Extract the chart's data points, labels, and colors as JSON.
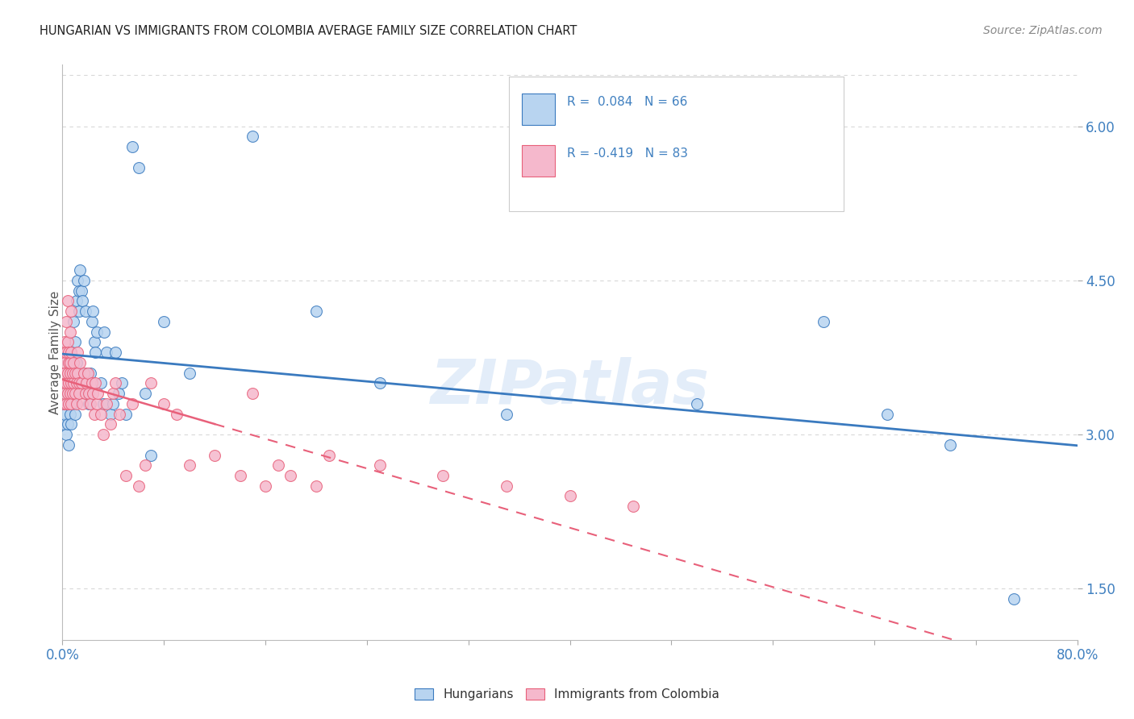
{
  "title": "HUNGARIAN VS IMMIGRANTS FROM COLOMBIA AVERAGE FAMILY SIZE CORRELATION CHART",
  "source_text": "Source: ZipAtlas.com",
  "ylabel": "Average Family Size",
  "right_yticks": [
    1.5,
    3.0,
    4.5,
    6.0
  ],
  "background_color": "#ffffff",
  "grid_color": "#d8d8d8",
  "hungarian_color": "#b8d4f0",
  "colombia_color": "#f5b8cc",
  "hungarian_line_color": "#3a7abf",
  "colombia_line_color": "#e8607a",
  "title_color": "#222222",
  "axis_label_color": "#4080c0",
  "watermark": "ZIPatlas",
  "xlim": [
    0.0,
    0.8
  ],
  "ylim": [
    1.0,
    6.6
  ],
  "hun_R": 0.084,
  "hun_N": 66,
  "col_R": -0.419,
  "col_N": 83,
  "hungarian_points": [
    [
      0.001,
      3.3
    ],
    [
      0.001,
      3.1
    ],
    [
      0.002,
      3.5
    ],
    [
      0.002,
      3.2
    ],
    [
      0.003,
      3.6
    ],
    [
      0.003,
      3.0
    ],
    [
      0.004,
      3.4
    ],
    [
      0.004,
      3.1
    ],
    [
      0.005,
      3.7
    ],
    [
      0.005,
      3.3
    ],
    [
      0.005,
      2.9
    ],
    [
      0.006,
      3.5
    ],
    [
      0.006,
      3.2
    ],
    [
      0.007,
      3.8
    ],
    [
      0.007,
      3.4
    ],
    [
      0.007,
      3.1
    ],
    [
      0.008,
      3.6
    ],
    [
      0.008,
      3.3
    ],
    [
      0.009,
      4.1
    ],
    [
      0.009,
      3.5
    ],
    [
      0.01,
      3.9
    ],
    [
      0.01,
      3.2
    ],
    [
      0.011,
      4.3
    ],
    [
      0.011,
      3.7
    ],
    [
      0.012,
      4.5
    ],
    [
      0.013,
      4.4
    ],
    [
      0.013,
      4.2
    ],
    [
      0.014,
      4.6
    ],
    [
      0.015,
      4.4
    ],
    [
      0.016,
      4.3
    ],
    [
      0.017,
      4.5
    ],
    [
      0.018,
      4.2
    ],
    [
      0.019,
      3.6
    ],
    [
      0.02,
      3.4
    ],
    [
      0.021,
      3.3
    ],
    [
      0.022,
      3.6
    ],
    [
      0.023,
      4.1
    ],
    [
      0.024,
      4.2
    ],
    [
      0.025,
      3.9
    ],
    [
      0.026,
      3.8
    ],
    [
      0.027,
      4.0
    ],
    [
      0.03,
      3.5
    ],
    [
      0.032,
      3.3
    ],
    [
      0.033,
      4.0
    ],
    [
      0.035,
      3.8
    ],
    [
      0.038,
      3.2
    ],
    [
      0.04,
      3.3
    ],
    [
      0.042,
      3.8
    ],
    [
      0.044,
      3.4
    ],
    [
      0.047,
      3.5
    ],
    [
      0.05,
      3.2
    ],
    [
      0.055,
      5.8
    ],
    [
      0.06,
      5.6
    ],
    [
      0.065,
      3.4
    ],
    [
      0.07,
      2.8
    ],
    [
      0.08,
      4.1
    ],
    [
      0.1,
      3.6
    ],
    [
      0.15,
      5.9
    ],
    [
      0.2,
      4.2
    ],
    [
      0.25,
      3.5
    ],
    [
      0.35,
      3.2
    ],
    [
      0.5,
      3.3
    ],
    [
      0.6,
      4.1
    ],
    [
      0.65,
      3.2
    ],
    [
      0.7,
      2.9
    ],
    [
      0.75,
      1.4
    ]
  ],
  "colombia_points": [
    [
      0.001,
      3.5
    ],
    [
      0.001,
      3.8
    ],
    [
      0.001,
      3.3
    ],
    [
      0.001,
      3.6
    ],
    [
      0.002,
      3.7
    ],
    [
      0.002,
      3.4
    ],
    [
      0.002,
      3.6
    ],
    [
      0.002,
      3.9
    ],
    [
      0.003,
      3.5
    ],
    [
      0.003,
      3.8
    ],
    [
      0.003,
      3.3
    ],
    [
      0.003,
      4.1
    ],
    [
      0.004,
      3.6
    ],
    [
      0.004,
      3.9
    ],
    [
      0.004,
      3.4
    ],
    [
      0.004,
      4.3
    ],
    [
      0.005,
      3.7
    ],
    [
      0.005,
      3.5
    ],
    [
      0.005,
      3.8
    ],
    [
      0.005,
      3.3
    ],
    [
      0.006,
      4.0
    ],
    [
      0.006,
      3.6
    ],
    [
      0.006,
      3.4
    ],
    [
      0.006,
      3.7
    ],
    [
      0.007,
      3.5
    ],
    [
      0.007,
      3.8
    ],
    [
      0.007,
      4.2
    ],
    [
      0.007,
      3.3
    ],
    [
      0.008,
      3.6
    ],
    [
      0.008,
      3.4
    ],
    [
      0.009,
      3.5
    ],
    [
      0.009,
      3.7
    ],
    [
      0.01,
      3.4
    ],
    [
      0.01,
      3.6
    ],
    [
      0.011,
      3.5
    ],
    [
      0.011,
      3.3
    ],
    [
      0.012,
      3.6
    ],
    [
      0.012,
      3.8
    ],
    [
      0.013,
      3.4
    ],
    [
      0.013,
      3.5
    ],
    [
      0.014,
      3.7
    ],
    [
      0.015,
      3.5
    ],
    [
      0.016,
      3.3
    ],
    [
      0.017,
      3.6
    ],
    [
      0.018,
      3.4
    ],
    [
      0.019,
      3.5
    ],
    [
      0.02,
      3.6
    ],
    [
      0.021,
      3.4
    ],
    [
      0.022,
      3.3
    ],
    [
      0.023,
      3.5
    ],
    [
      0.024,
      3.4
    ],
    [
      0.025,
      3.2
    ],
    [
      0.026,
      3.5
    ],
    [
      0.027,
      3.3
    ],
    [
      0.028,
      3.4
    ],
    [
      0.03,
      3.2
    ],
    [
      0.032,
      3.0
    ],
    [
      0.035,
      3.3
    ],
    [
      0.038,
      3.1
    ],
    [
      0.04,
      3.4
    ],
    [
      0.042,
      3.5
    ],
    [
      0.045,
      3.2
    ],
    [
      0.05,
      2.6
    ],
    [
      0.055,
      3.3
    ],
    [
      0.06,
      2.5
    ],
    [
      0.065,
      2.7
    ],
    [
      0.07,
      3.5
    ],
    [
      0.08,
      3.3
    ],
    [
      0.09,
      3.2
    ],
    [
      0.1,
      2.7
    ],
    [
      0.12,
      2.8
    ],
    [
      0.14,
      2.6
    ],
    [
      0.15,
      3.4
    ],
    [
      0.16,
      2.5
    ],
    [
      0.17,
      2.7
    ],
    [
      0.18,
      2.6
    ],
    [
      0.2,
      2.5
    ],
    [
      0.21,
      2.8
    ],
    [
      0.25,
      2.7
    ],
    [
      0.3,
      2.6
    ],
    [
      0.35,
      2.5
    ],
    [
      0.4,
      2.4
    ],
    [
      0.45,
      2.3
    ]
  ]
}
